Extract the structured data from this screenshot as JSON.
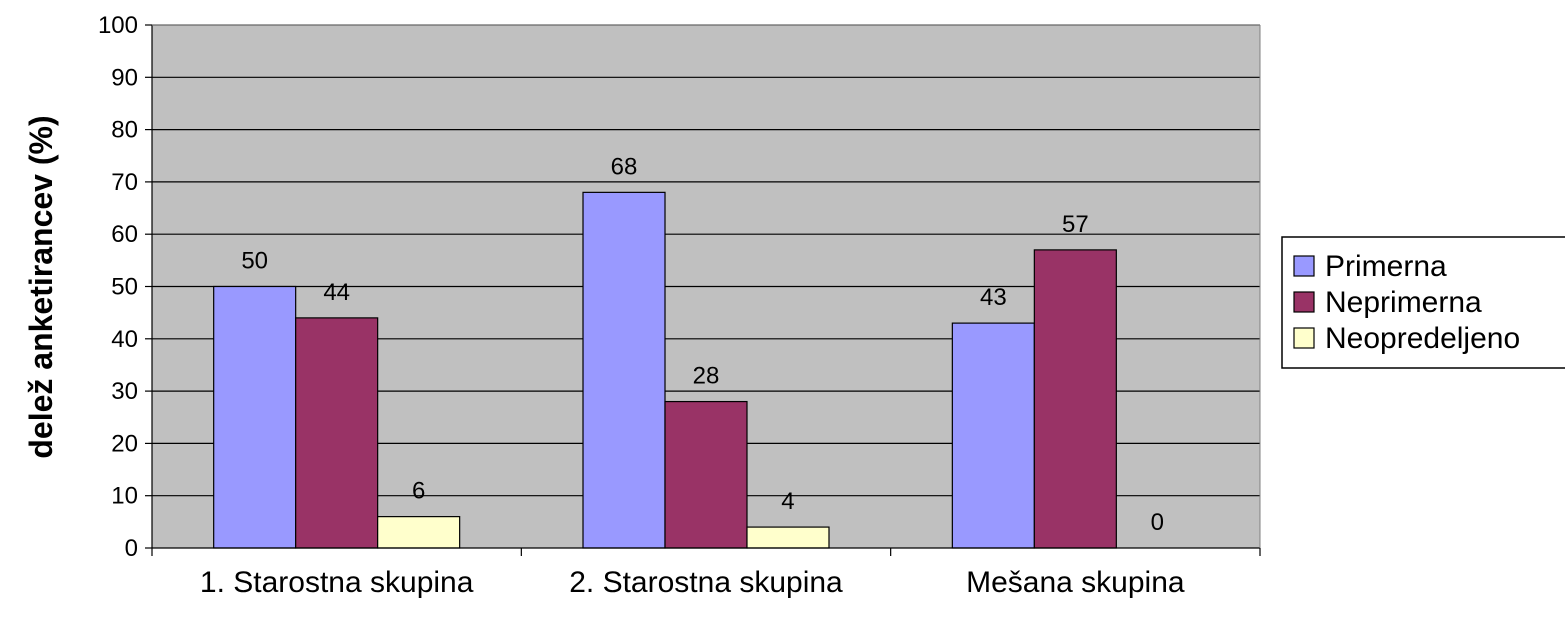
{
  "chart_data": {
    "type": "bar",
    "ylabel": "delež anketirancev (%)",
    "xlabel": "",
    "ylim": [
      0,
      100
    ],
    "yticks": [
      "0",
      "10",
      "20",
      "30",
      "40",
      "50",
      "60",
      "70",
      "80",
      "90",
      "100"
    ],
    "grid": true,
    "legend_position": "right",
    "plot_background": "#C0C0C0",
    "categories": [
      "1. Starostna skupina",
      "2. Starostna skupina",
      "Mešana skupina"
    ],
    "series": [
      {
        "name": "Primerna",
        "color": "#9999FF",
        "values": [
          50,
          68,
          43
        ]
      },
      {
        "name": "Neprimerna",
        "color": "#993366",
        "values": [
          44,
          28,
          57
        ]
      },
      {
        "name": "Neopredeljeno",
        "color": "#FFFFCC",
        "values": [
          6,
          4,
          0
        ]
      }
    ],
    "data_labels": [
      [
        "50",
        "68",
        "43"
      ],
      [
        "44",
        "28",
        "57"
      ],
      [
        "6",
        "4",
        "0"
      ]
    ]
  }
}
